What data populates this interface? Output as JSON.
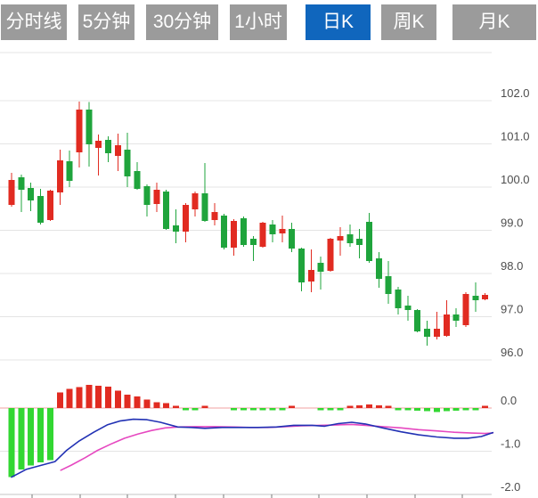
{
  "toolbar": {
    "tabs": [
      {
        "label": "分时线",
        "active": false
      },
      {
        "label": "5分钟",
        "active": false
      },
      {
        "label": "30分钟",
        "active": false
      },
      {
        "label": "1小时",
        "active": false
      },
      {
        "label": "日K",
        "active": true
      },
      {
        "label": "周K",
        "active": false
      },
      {
        "label": "月K",
        "active": false
      }
    ]
  },
  "colors": {
    "up": "#e12b21",
    "down": "#1fa43c",
    "hist_up": "#e12b21",
    "hist_down": "#32d732",
    "dif": "#2131b4",
    "dea": "#e648c0",
    "zero_line": "#f2a2a2",
    "grid": "#e4e4e4",
    "grid_dark": "#c6c6c6",
    "axis_text": "#4d4d4d",
    "tick": "#777777",
    "tab_bg": "#9b9b9b",
    "tab_active_bg": "#1066bd",
    "tab_text": "#ffffff"
  },
  "chart_data": {
    "type": "candlestick",
    "title": "日K line chart with MACD indicator",
    "legend_position": "none",
    "grid": true,
    "price_axis": {
      "side": "right",
      "tick_labels": [
        "102.0",
        "101.0",
        "100.0",
        "99.0",
        "98.0",
        "97.0",
        "96.0"
      ],
      "values": [
        102.0,
        101.0,
        100.0,
        99.0,
        98.0,
        97.0,
        96.0
      ],
      "range": [
        95.9,
        102.1
      ]
    },
    "indicator_axis": {
      "side": "right",
      "tick_labels": [
        "0.0",
        "-1.0",
        "-2.0"
      ],
      "values": [
        0.0,
        -1.0,
        -2.0
      ],
      "range": [
        -2.05,
        0.6
      ]
    },
    "candles": [
      [
        99.59,
        100.33,
        99.55,
        100.16
      ],
      [
        100.23,
        100.29,
        99.42,
        99.94
      ],
      [
        99.98,
        100.1,
        99.44,
        99.69
      ],
      [
        99.79,
        99.96,
        99.13,
        99.18
      ],
      [
        99.24,
        99.94,
        99.22,
        99.92
      ],
      [
        99.88,
        100.87,
        99.59,
        100.62
      ],
      [
        100.6,
        100.85,
        100.0,
        100.14
      ],
      [
        100.8,
        101.98,
        100.45,
        101.79
      ],
      [
        101.79,
        101.97,
        100.47,
        100.99
      ],
      [
        100.91,
        101.22,
        100.27,
        101.07
      ],
      [
        101.09,
        101.18,
        100.58,
        100.78
      ],
      [
        100.72,
        101.24,
        100.37,
        100.97
      ],
      [
        100.87,
        101.26,
        100.0,
        100.25
      ],
      [
        100.37,
        100.58,
        99.94,
        99.96
      ],
      [
        100.02,
        100.06,
        99.32,
        99.59
      ],
      [
        99.61,
        100.1,
        99.42,
        99.94
      ],
      [
        99.9,
        99.94,
        99.01,
        99.03
      ],
      [
        99.11,
        99.48,
        98.7,
        98.97
      ],
      [
        98.97,
        99.63,
        98.72,
        99.59
      ],
      [
        99.48,
        99.9,
        99.32,
        99.86
      ],
      [
        99.86,
        100.56,
        99.2,
        99.22
      ],
      [
        99.24,
        99.63,
        99.11,
        99.42
      ],
      [
        99.34,
        99.38,
        98.56,
        98.6
      ],
      [
        98.6,
        99.26,
        98.41,
        99.22
      ],
      [
        99.28,
        99.32,
        98.62,
        98.66
      ],
      [
        98.8,
        98.87,
        98.29,
        98.66
      ],
      [
        98.62,
        99.2,
        98.6,
        99.18
      ],
      [
        99.13,
        99.24,
        98.72,
        98.91
      ],
      [
        98.93,
        99.34,
        98.72,
        99.03
      ],
      [
        99.03,
        99.18,
        98.49,
        98.58
      ],
      [
        98.58,
        98.6,
        97.59,
        97.79
      ],
      [
        97.81,
        98.56,
        97.57,
        98.08
      ],
      [
        98.25,
        98.39,
        97.63,
        98.04
      ],
      [
        98.06,
        98.82,
        98.04,
        98.8
      ],
      [
        98.76,
        99.07,
        98.41,
        98.87
      ],
      [
        98.91,
        99.13,
        98.62,
        98.7
      ],
      [
        98.8,
        99.03,
        98.35,
        98.66
      ],
      [
        99.2,
        99.4,
        98.25,
        98.29
      ],
      [
        98.35,
        98.49,
        97.67,
        97.88
      ],
      [
        97.94,
        98.29,
        97.3,
        97.53
      ],
      [
        97.63,
        97.69,
        97.05,
        97.2
      ],
      [
        97.26,
        97.48,
        96.91,
        97.15
      ],
      [
        97.15,
        97.18,
        96.64,
        96.66
      ],
      [
        96.72,
        96.91,
        96.33,
        96.54
      ],
      [
        96.54,
        97.11,
        96.47,
        96.72
      ],
      [
        96.56,
        97.38,
        96.54,
        97.05
      ],
      [
        97.05,
        97.2,
        96.76,
        96.91
      ],
      [
        96.8,
        97.57,
        96.76,
        97.53
      ],
      [
        97.48,
        97.79,
        97.11,
        97.38
      ],
      [
        97.4,
        97.55,
        97.38,
        97.51
      ]
    ],
    "macd_histogram": [
      -1.6,
      -1.42,
      -1.33,
      -1.26,
      -1.21,
      0.36,
      0.44,
      0.48,
      0.54,
      0.52,
      0.5,
      0.4,
      0.31,
      0.27,
      0.2,
      0.13,
      0.11,
      0.02,
      -0.02,
      -0.02,
      0.02,
      0,
      0,
      -0.04,
      -0.04,
      -0.04,
      -0.04,
      -0.03,
      -0.03,
      0.02,
      0,
      0,
      -0.03,
      -0.03,
      -0.03,
      0.04,
      0.06,
      0.08,
      0.06,
      0.02,
      -0.02,
      -0.04,
      -0.06,
      -0.07,
      -0.09,
      -0.07,
      -0.06,
      -0.05,
      -0.03,
      0.03
    ],
    "dif_line": [
      [
        0,
        -1.6
      ],
      [
        1.5,
        -1.42
      ],
      [
        3,
        -1.33
      ],
      [
        4.5,
        -1.24
      ],
      [
        5.7,
        -0.98
      ],
      [
        7,
        -0.76
      ],
      [
        8.5,
        -0.56
      ],
      [
        9.9,
        -0.39
      ],
      [
        11.2,
        -0.3
      ],
      [
        12.6,
        -0.26
      ],
      [
        14,
        -0.27
      ],
      [
        15.4,
        -0.33
      ],
      [
        17.2,
        -0.44
      ],
      [
        18.6,
        -0.45
      ],
      [
        20,
        -0.47
      ],
      [
        21.8,
        -0.45
      ],
      [
        23.7,
        -0.45
      ],
      [
        25.5,
        -0.45
      ],
      [
        27.4,
        -0.44
      ],
      [
        29.2,
        -0.4
      ],
      [
        31.1,
        -0.4
      ],
      [
        32.4,
        -0.42
      ],
      [
        33.8,
        -0.36
      ],
      [
        35.2,
        -0.33
      ],
      [
        36.6,
        -0.37
      ],
      [
        38.4,
        -0.46
      ],
      [
        40.3,
        -0.55
      ],
      [
        42.1,
        -0.62
      ],
      [
        44,
        -0.67
      ],
      [
        45.8,
        -0.7
      ],
      [
        47.2,
        -0.7
      ],
      [
        48.6,
        -0.66
      ],
      [
        49.8,
        -0.57
      ]
    ],
    "dea_line": [
      [
        5.1,
        -1.44
      ],
      [
        6.2,
        -1.32
      ],
      [
        7.6,
        -1.15
      ],
      [
        8.9,
        -0.98
      ],
      [
        10.3,
        -0.83
      ],
      [
        11.7,
        -0.7
      ],
      [
        13.1,
        -0.6
      ],
      [
        14.5,
        -0.52
      ],
      [
        15.9,
        -0.46
      ],
      [
        17.2,
        -0.44
      ],
      [
        19,
        -0.43
      ],
      [
        21,
        -0.43
      ],
      [
        23,
        -0.44
      ],
      [
        24.6,
        -0.45
      ],
      [
        26.5,
        -0.45
      ],
      [
        28.3,
        -0.43
      ],
      [
        30,
        -0.41
      ],
      [
        32,
        -0.4
      ],
      [
        33.8,
        -0.39
      ],
      [
        35.2,
        -0.38
      ],
      [
        36.6,
        -0.4
      ],
      [
        38.4,
        -0.43
      ],
      [
        40.3,
        -0.46
      ],
      [
        42.1,
        -0.5
      ],
      [
        44,
        -0.53
      ],
      [
        45.8,
        -0.56
      ],
      [
        47.6,
        -0.58
      ],
      [
        49,
        -0.59
      ],
      [
        49.8,
        -0.575
      ]
    ]
  }
}
